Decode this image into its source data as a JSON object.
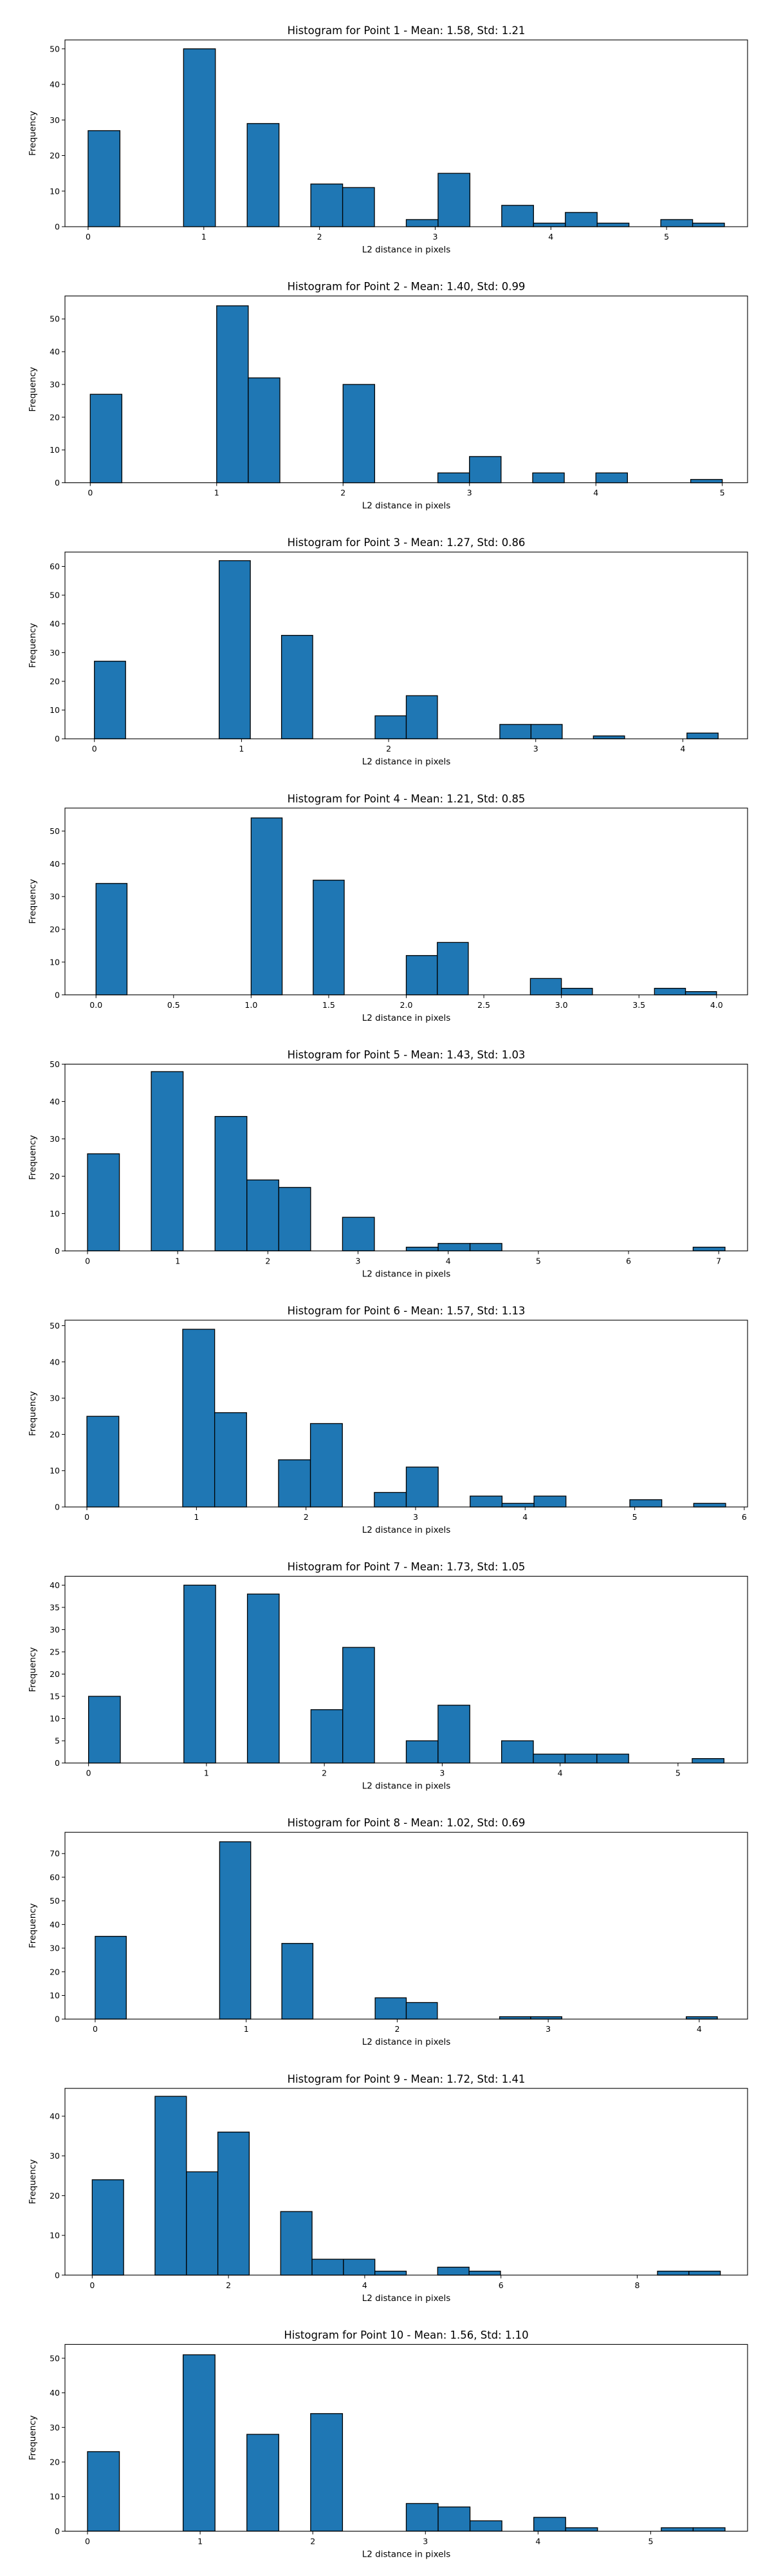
{
  "figure": {
    "bar_color": "#1f77b4",
    "edge_color": "#000000"
  },
  "chart_data": [
    {
      "type": "bar",
      "title": "Histogram for Point 1 - Mean: 1.58, Std: 1.21",
      "xlabel": "L2 distance in pixels",
      "ylabel": "Frequency",
      "x_range": [
        0,
        5.5
      ],
      "xlim": [
        -0.2,
        5.7
      ],
      "ylim": [
        0,
        52.5
      ],
      "xticks": [
        0,
        1,
        2,
        3,
        4,
        5
      ],
      "xtick_labels": [
        "0",
        "1",
        "2",
        "3",
        "4",
        "5"
      ],
      "yticks": [
        0,
        10,
        20,
        30,
        40,
        50
      ],
      "ytick_labels": [
        "0",
        "10",
        "20",
        "30",
        "40",
        "50"
      ],
      "bins": 20,
      "counts": [
        27,
        0,
        0,
        50,
        0,
        29,
        0,
        12,
        11,
        0,
        2,
        15,
        0,
        6,
        1,
        4,
        1,
        0,
        2,
        1
      ]
    },
    {
      "type": "bar",
      "title": "Histogram for Point 2 - Mean: 1.40, Std: 0.99",
      "xlabel": "L2 distance in pixels",
      "ylabel": "Frequency",
      "x_range": [
        0,
        5.0
      ],
      "xlim": [
        -0.2,
        5.2
      ],
      "ylim": [
        0,
        57
      ],
      "xticks": [
        0,
        1,
        2,
        3,
        4,
        5
      ],
      "xtick_labels": [
        "0",
        "1",
        "2",
        "3",
        "4",
        "5"
      ],
      "yticks": [
        0,
        10,
        20,
        30,
        40,
        50
      ],
      "ytick_labels": [
        "0",
        "10",
        "20",
        "30",
        "40",
        "50"
      ],
      "bins": 20,
      "counts": [
        27,
        0,
        0,
        0,
        54,
        32,
        0,
        0,
        30,
        0,
        0,
        3,
        8,
        0,
        3,
        0,
        3,
        0,
        0,
        1
      ]
    },
    {
      "type": "bar",
      "title": "Histogram for Point 3 - Mean: 1.27, Std: 0.86",
      "xlabel": "L2 distance in pixels",
      "ylabel": "Frequency",
      "x_range": [
        0,
        4.24
      ],
      "xlim": [
        -0.2,
        4.44
      ],
      "ylim": [
        0,
        65
      ],
      "xticks": [
        0,
        1,
        2,
        3,
        4
      ],
      "xtick_labels": [
        "0",
        "1",
        "2",
        "3",
        "4"
      ],
      "yticks": [
        0,
        10,
        20,
        30,
        40,
        50,
        60
      ],
      "ytick_labels": [
        "0",
        "10",
        "20",
        "30",
        "40",
        "50",
        "60"
      ],
      "bins": 20,
      "counts": [
        27,
        0,
        0,
        0,
        62,
        0,
        36,
        0,
        0,
        8,
        15,
        0,
        0,
        5,
        5,
        0,
        1,
        0,
        0,
        2
      ]
    },
    {
      "type": "bar",
      "title": "Histogram for Point 4 - Mean: 1.21, Std: 0.85",
      "xlabel": "L2 distance in pixels",
      "ylabel": "Frequency",
      "x_range": [
        0,
        4.0
      ],
      "xlim": [
        -0.2,
        4.2
      ],
      "ylim": [
        0,
        57
      ],
      "xticks": [
        0,
        0.5,
        1,
        1.5,
        2,
        2.5,
        3,
        3.5,
        4
      ],
      "xtick_labels": [
        "0.0",
        "0.5",
        "1.0",
        "1.5",
        "2.0",
        "2.5",
        "3.0",
        "3.5",
        "4.0"
      ],
      "yticks": [
        0,
        10,
        20,
        30,
        40,
        50
      ],
      "ytick_labels": [
        "0",
        "10",
        "20",
        "30",
        "40",
        "50"
      ],
      "bins": 20,
      "counts": [
        34,
        0,
        0,
        0,
        0,
        54,
        0,
        35,
        0,
        0,
        12,
        16,
        0,
        0,
        5,
        2,
        0,
        0,
        2,
        1
      ]
    },
    {
      "type": "bar",
      "title": "Histogram for Point 5 - Mean: 1.43, Std: 1.03",
      "xlabel": "L2 distance in pixels",
      "ylabel": "Frequency",
      "x_range": [
        0,
        7.07
      ],
      "xlim": [
        -0.25,
        7.32
      ],
      "ylim": [
        0,
        50
      ],
      "xticks": [
        0,
        1,
        2,
        3,
        4,
        5,
        6,
        7
      ],
      "xtick_labels": [
        "0",
        "1",
        "2",
        "3",
        "4",
        "5",
        "6",
        "7"
      ],
      "yticks": [
        0,
        10,
        20,
        30,
        40,
        50
      ],
      "ytick_labels": [
        "0",
        "10",
        "20",
        "30",
        "40",
        "50"
      ],
      "bins": 20,
      "counts": [
        26,
        0,
        48,
        0,
        36,
        19,
        17,
        0,
        9,
        0,
        1,
        2,
        2,
        0,
        0,
        0,
        0,
        0,
        0,
        1
      ]
    },
    {
      "type": "bar",
      "title": "Histogram for Point 6 - Mean: 1.57, Std: 1.13",
      "xlabel": "L2 distance in pixels",
      "ylabel": "Frequency",
      "x_range": [
        0,
        5.83
      ],
      "xlim": [
        -0.2,
        6.03
      ],
      "ylim": [
        0,
        51.5
      ],
      "xticks": [
        0,
        1,
        2,
        3,
        4,
        5,
        6
      ],
      "xtick_labels": [
        "0",
        "1",
        "2",
        "3",
        "4",
        "5",
        "6"
      ],
      "yticks": [
        0,
        10,
        20,
        30,
        40,
        50
      ],
      "ytick_labels": [
        "0",
        "10",
        "20",
        "30",
        "40",
        "50"
      ],
      "bins": 20,
      "counts": [
        25,
        0,
        0,
        49,
        26,
        0,
        13,
        23,
        0,
        4,
        11,
        0,
        3,
        1,
        3,
        0,
        0,
        2,
        0,
        1
      ]
    },
    {
      "type": "bar",
      "title": "Histogram for Point 7 - Mean: 1.73, Std: 1.05",
      "xlabel": "L2 distance in pixels",
      "ylabel": "Frequency",
      "x_range": [
        0,
        5.39
      ],
      "xlim": [
        -0.2,
        5.59
      ],
      "ylim": [
        0,
        42
      ],
      "xticks": [
        0,
        1,
        2,
        3,
        4,
        5
      ],
      "xtick_labels": [
        "0",
        "1",
        "2",
        "3",
        "4",
        "5"
      ],
      "yticks": [
        0,
        5,
        10,
        15,
        20,
        25,
        30,
        35,
        40
      ],
      "ytick_labels": [
        "0",
        "5",
        "10",
        "15",
        "20",
        "25",
        "30",
        "35",
        "40"
      ],
      "bins": 20,
      "counts": [
        15,
        0,
        0,
        40,
        0,
        38,
        0,
        12,
        26,
        0,
        5,
        13,
        0,
        5,
        2,
        2,
        2,
        0,
        0,
        1
      ]
    },
    {
      "type": "bar",
      "title": "Histogram for Point 8 - Mean: 1.02, Std: 0.69",
      "xlabel": "L2 distance in pixels",
      "ylabel": "Frequency",
      "x_range": [
        0,
        4.12
      ],
      "xlim": [
        -0.2,
        4.32
      ],
      "ylim": [
        0,
        79
      ],
      "xticks": [
        0,
        1,
        2,
        3,
        4
      ],
      "xtick_labels": [
        "0",
        "1",
        "2",
        "3",
        "4"
      ],
      "yticks": [
        0,
        10,
        20,
        30,
        40,
        50,
        60,
        70
      ],
      "ytick_labels": [
        "0",
        "10",
        "20",
        "30",
        "40",
        "50",
        "60",
        "70"
      ],
      "bins": 20,
      "counts": [
        35,
        0,
        0,
        0,
        75,
        0,
        32,
        0,
        0,
        9,
        7,
        0,
        0,
        1,
        1,
        0,
        0,
        0,
        0,
        1
      ]
    },
    {
      "type": "bar",
      "title": "Histogram for Point 9 - Mean: 1.72, Std: 1.41",
      "xlabel": "L2 distance in pixels",
      "ylabel": "Frequency",
      "x_range": [
        0,
        9.22
      ],
      "xlim": [
        -0.4,
        9.62
      ],
      "ylim": [
        0,
        47
      ],
      "xticks": [
        0,
        2,
        4,
        6,
        8
      ],
      "xtick_labels": [
        "0",
        "2",
        "4",
        "6",
        "8"
      ],
      "yticks": [
        0,
        10,
        20,
        30,
        40
      ],
      "ytick_labels": [
        "0",
        "10",
        "20",
        "30",
        "40"
      ],
      "bins": 20,
      "counts": [
        24,
        0,
        45,
        26,
        36,
        0,
        16,
        4,
        4,
        1,
        0,
        2,
        1,
        0,
        0,
        0,
        0,
        0,
        1,
        1
      ]
    },
    {
      "type": "bar",
      "title": "Histogram for Point 10 - Mean: 1.56, Std: 1.10",
      "xlabel": "L2 distance in pixels",
      "ylabel": "Frequency",
      "x_range": [
        0,
        5.66
      ],
      "xlim": [
        -0.2,
        5.86
      ],
      "ylim": [
        0,
        54
      ],
      "xticks": [
        0,
        1,
        2,
        3,
        4,
        5
      ],
      "xtick_labels": [
        "0",
        "1",
        "2",
        "3",
        "4",
        "5"
      ],
      "yticks": [
        0,
        10,
        20,
        30,
        40,
        50
      ],
      "ytick_labels": [
        "0",
        "10",
        "20",
        "30",
        "40",
        "50"
      ],
      "bins": 20,
      "counts": [
        23,
        0,
        0,
        51,
        0,
        28,
        0,
        34,
        0,
        0,
        8,
        7,
        3,
        0,
        4,
        1,
        0,
        0,
        1,
        1
      ]
    }
  ]
}
